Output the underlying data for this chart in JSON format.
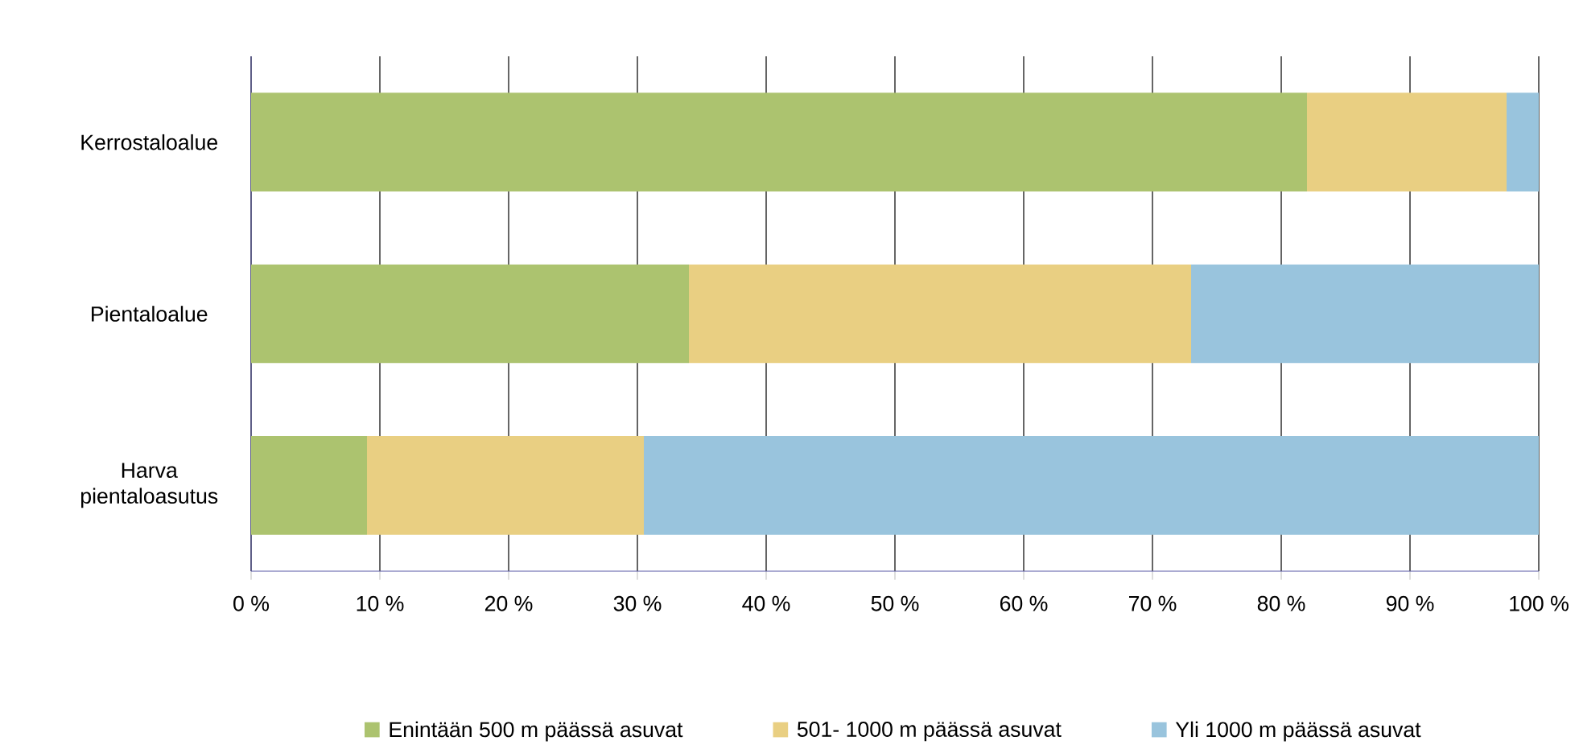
{
  "chart_data": {
    "type": "bar",
    "orientation": "horizontal",
    "stacked": true,
    "categories": [
      "Kerrostaloalue",
      "Pientaloalue",
      "Harva pientaloasutus"
    ],
    "series": [
      {
        "name": "Enintään 500 m päässä asuvat",
        "color": "#acc36f",
        "values": [
          82.0,
          34.0,
          9.0
        ]
      },
      {
        "name": "501- 1000 m päässä asuvat",
        "color": "#e9cf82",
        "values": [
          15.5,
          39.0,
          21.5
        ]
      },
      {
        "name": "Yli 1000 m päässä asuvat",
        "color": "#99c4dd",
        "values": [
          2.5,
          27.0,
          69.5
        ]
      }
    ],
    "xlim": [
      0,
      100
    ],
    "xticks": [
      {
        "value": 0,
        "label": "0 %"
      },
      {
        "value": 10,
        "label": "10 %"
      },
      {
        "value": 20,
        "label": "20 %"
      },
      {
        "value": 30,
        "label": "30 %"
      },
      {
        "value": 40,
        "label": "40 %"
      },
      {
        "value": 50,
        "label": "50 %"
      },
      {
        "value": 60,
        "label": "60 %"
      },
      {
        "value": 70,
        "label": "70 %"
      },
      {
        "value": 80,
        "label": "80 %"
      },
      {
        "value": 90,
        "label": "90 %"
      },
      {
        "value": 100,
        "label": "100 %"
      }
    ],
    "grid": "x",
    "legend": "bottom"
  }
}
